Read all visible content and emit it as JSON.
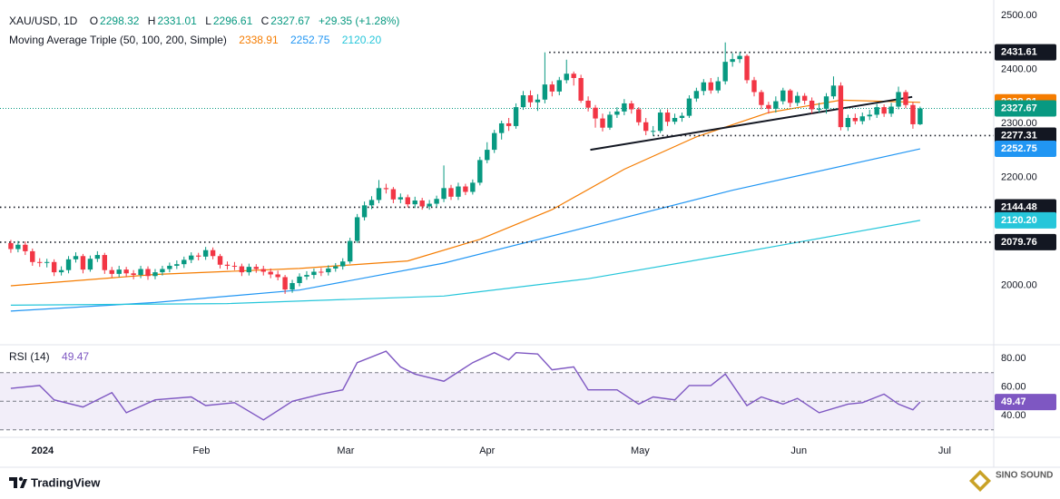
{
  "chart_data": {
    "type": "candlestick",
    "title": "XAU/USD, 1D",
    "ohlc_prefixes": [
      "O",
      "H",
      "L",
      "C"
    ],
    "change": "+29.35 (+1.28%)",
    "indicator": "Moving Average Triple (50, 100, 200, Simple)",
    "up_color": "#089981",
    "down_color": "#f23645",
    "open": [
      2078,
      2067,
      2075,
      2063,
      2043,
      2042,
      2043,
      2024,
      2028,
      2048,
      2054,
      2029,
      2049,
      2056,
      2028,
      2021,
      2029,
      2022,
      2019,
      2030,
      2017,
      2024,
      2030,
      2036,
      2039,
      2047,
      2055,
      2053,
      2065,
      2054,
      2038,
      2036,
      2035,
      2024,
      2034,
      2030,
      2025,
      2020,
      2015,
      1992,
      2004,
      2016,
      2019,
      2025,
      2024,
      2031,
      2035,
      2044,
      2082,
      2126,
      2148,
      2158,
      2180,
      2178,
      2159,
      2163,
      2150,
      2157,
      2146,
      2151,
      2160,
      2180,
      2164,
      2183,
      2173,
      2190,
      2232,
      2251,
      2282,
      2300,
      2295,
      2330,
      2352,
      2339,
      2344,
      2372,
      2359,
      2380,
      2392,
      2384,
      2342,
      2329,
      2309,
      2292,
      2316,
      2322,
      2337,
      2326,
      2302,
      2286,
      2286,
      2320,
      2303,
      2310,
      2314,
      2346,
      2360,
      2376,
      2361,
      2378,
      2414,
      2419,
      2425,
      2380,
      2358,
      2334,
      2327,
      2341,
      2361,
      2338,
      2351,
      2342,
      2326,
      2327,
      2350,
      2370,
      2293,
      2310,
      2304,
      2313,
      2316,
      2330,
      2318,
      2331,
      2358,
      2334,
      2298.32
    ],
    "high": [
      2084,
      2082,
      2081,
      2068,
      2050,
      2049,
      2048,
      2035,
      2054,
      2061,
      2058,
      2055,
      2063,
      2060,
      2034,
      2036,
      2034,
      2028,
      2036,
      2035,
      2030,
      2036,
      2042,
      2046,
      2053,
      2061,
      2060,
      2071,
      2070,
      2058,
      2044,
      2043,
      2040,
      2040,
      2039,
      2036,
      2031,
      2027,
      2019,
      2010,
      2022,
      2026,
      2031,
      2032,
      2037,
      2041,
      2050,
      2088,
      2132,
      2155,
      2165,
      2195,
      2188,
      2182,
      2170,
      2168,
      2164,
      2162,
      2158,
      2166,
      2222,
      2186,
      2190,
      2188,
      2196,
      2238,
      2265,
      2288,
      2305,
      2310,
      2337,
      2360,
      2361,
      2354,
      2431.61,
      2378,
      2386,
      2418,
      2396,
      2390,
      2350,
      2334,
      2318,
      2322,
      2330,
      2345,
      2342,
      2330,
      2310,
      2295,
      2326,
      2326,
      2318,
      2320,
      2352,
      2366,
      2382,
      2384,
      2386,
      2450,
      2430,
      2432,
      2428,
      2386,
      2362,
      2340,
      2350,
      2366,
      2364,
      2358,
      2356,
      2348,
      2338,
      2356,
      2387,
      2376,
      2316,
      2318,
      2320,
      2325,
      2336,
      2335,
      2338,
      2368,
      2362,
      2340,
      2331.01
    ],
    "low": [
      2060,
      2061,
      2056,
      2036,
      2034,
      2033,
      2017,
      2018,
      2022,
      2042,
      2022,
      2025,
      2043,
      2021,
      2014,
      2015,
      2015,
      2011,
      2013,
      2010,
      2011,
      2018,
      2024,
      2030,
      2032,
      2041,
      2046,
      2047,
      2048,
      2031,
      2029,
      2028,
      2017,
      2018,
      2023,
      2018,
      2013,
      2009,
      1984,
      1986,
      1998,
      2010,
      2012,
      2017,
      2018,
      2025,
      2029,
      2040,
      2078,
      2120,
      2141,
      2152,
      2170,
      2152,
      2152,
      2144,
      2143,
      2140,
      2140,
      2145,
      2154,
      2158,
      2158,
      2167,
      2168,
      2185,
      2226,
      2245,
      2270,
      2286,
      2290,
      2325,
      2330,
      2323,
      2337,
      2350,
      2352,
      2374,
      2370,
      2338,
      2322,
      2292,
      2285,
      2288,
      2310,
      2315,
      2318,
      2296,
      2278,
      2277.31,
      2282,
      2295,
      2298,
      2303,
      2310,
      2340,
      2352,
      2355,
      2356,
      2372,
      2405,
      2412,
      2374,
      2350,
      2326,
      2318,
      2320,
      2335,
      2330,
      2332,
      2335,
      2318,
      2320,
      2318,
      2345,
      2287,
      2286,
      2298,
      2298,
      2306,
      2310,
      2312,
      2312,
      2326,
      2328,
      2290,
      2296.61
    ],
    "close": [
      2067,
      2075,
      2063,
      2043,
      2042,
      2043,
      2024,
      2028,
      2048,
      2054,
      2029,
      2049,
      2056,
      2028,
      2021,
      2029,
      2022,
      2019,
      2030,
      2017,
      2024,
      2030,
      2036,
      2039,
      2047,
      2055,
      2053,
      2065,
      2054,
      2038,
      2036,
      2035,
      2024,
      2034,
      2030,
      2025,
      2020,
      2015,
      1992,
      2004,
      2016,
      2019,
      2025,
      2024,
      2031,
      2035,
      2044,
      2082,
      2126,
      2148,
      2158,
      2180,
      2178,
      2159,
      2163,
      2150,
      2157,
      2146,
      2151,
      2160,
      2180,
      2164,
      2183,
      2173,
      2190,
      2232,
      2251,
      2282,
      2300,
      2295,
      2330,
      2352,
      2339,
      2344,
      2372,
      2359,
      2380,
      2392,
      2384,
      2342,
      2329,
      2309,
      2292,
      2316,
      2322,
      2337,
      2326,
      2302,
      2286,
      2286,
      2320,
      2303,
      2310,
      2314,
      2346,
      2360,
      2376,
      2361,
      2378,
      2414,
      2419,
      2425,
      2380,
      2358,
      2334,
      2327,
      2341,
      2361,
      2338,
      2351,
      2342,
      2326,
      2327,
      2350,
      2370,
      2293,
      2310,
      2304,
      2313,
      2316,
      2330,
      2318,
      2331,
      2358,
      2334,
      2298.32,
      2327.67
    ],
    "xlim": [
      -1.5,
      136.2
    ],
    "xticks": [
      {
        "value": 4.4,
        "label": "2024"
      },
      {
        "value": 26.4,
        "label": "Feb"
      },
      {
        "value": 46.4,
        "label": "Mar"
      },
      {
        "value": 66,
        "label": "Apr"
      },
      {
        "value": 87.2,
        "label": "May"
      },
      {
        "value": 109.2,
        "label": "Jun"
      },
      {
        "value": 129.4,
        "label": "Jul"
      }
    ],
    "ylim": [
      1893,
      2528.6
    ],
    "yticks": [
      {
        "value": 2500,
        "label": "2500.00"
      },
      {
        "value": 2400,
        "label": "2400.00"
      },
      {
        "value": 2300,
        "label": "2300.00"
      },
      {
        "value": 2200,
        "label": "2200.00"
      },
      {
        "value": 2000,
        "label": "2000.00"
      }
    ],
    "moving_averages": [
      {
        "color": "#f57c00",
        "x": [
          0,
          20,
          40,
          55,
          65,
          75,
          85,
          95,
          105,
          115,
          126
        ],
        "values": [
          1999,
          2020,
          2031,
          2045,
          2085,
          2140,
          2215,
          2275,
          2320,
          2343,
          2338.91
        ]
      },
      {
        "color": "#2196f3",
        "x": [
          0,
          20,
          40,
          60,
          80,
          100,
          126
        ],
        "values": [
          1952,
          1968,
          1991,
          2041,
          2108,
          2176,
          2252.75
        ]
      },
      {
        "color": "#26c6da",
        "x": [
          0,
          30,
          60,
          80,
          100,
          126
        ],
        "values": [
          1963,
          1966,
          1980,
          2012,
          2058,
          2120.2
        ],
        "value_labels": [
          null,
          null,
          null,
          null,
          null,
          "2120.20"
        ]
      }
    ],
    "levels": [
      {
        "value": 2431.61,
        "from": 74.6
      },
      {
        "value": 2277.31,
        "from": 89
      },
      {
        "value": 2144.48,
        "from": -1.5
      },
      {
        "value": 2079.76,
        "from": -1.5
      }
    ],
    "level_color": "#131722",
    "trendline": {
      "x": [
        80.3,
        124.9
      ],
      "y": [
        2251,
        2349
      ]
    },
    "rsi": {
      "type": "line",
      "title": "RSI (14)",
      "color": "#7e57c2",
      "x": [
        0,
        4,
        6,
        10,
        14,
        16,
        20,
        25,
        27,
        31,
        35,
        39,
        43,
        46,
        48,
        52,
        54,
        56,
        60,
        64,
        67,
        69,
        70,
        73,
        75,
        78,
        80,
        84,
        87,
        89,
        92,
        94,
        97,
        99,
        102,
        104,
        107,
        109,
        112,
        116,
        118,
        121,
        123,
        125,
        126
      ],
      "values": [
        59,
        61,
        51,
        46,
        56,
        42,
        51,
        53,
        47,
        49,
        37,
        50,
        55,
        58,
        77,
        85,
        74,
        69,
        64,
        77,
        84,
        79,
        84,
        83,
        72,
        74,
        58,
        58,
        48,
        53,
        51,
        61,
        61,
        69,
        47,
        53,
        48,
        52,
        42,
        48,
        49,
        55,
        48,
        44,
        49.47
      ],
      "ylim": [
        24.8,
        89.5
      ],
      "yticks": [
        {
          "value": 80,
          "label": "80.00"
        },
        {
          "value": 60,
          "label": "60.00"
        },
        {
          "value": 40,
          "label": "40.00"
        }
      ],
      "band": [
        30,
        70
      ],
      "midline": 50
    }
  },
  "footer": {
    "brand": "TradingView",
    "watermark": "SINO SOUND"
  }
}
